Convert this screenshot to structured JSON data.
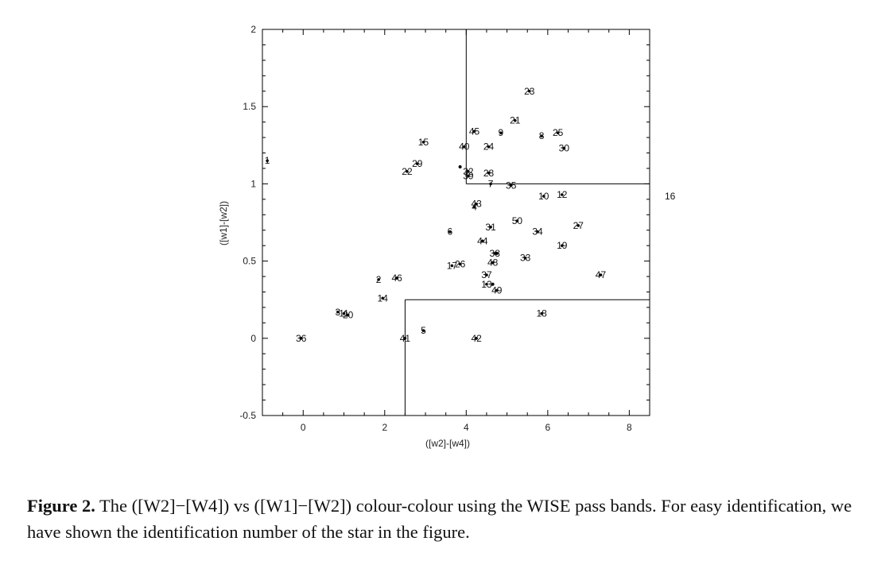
{
  "caption": {
    "label": "Figure 2.",
    "text": "The ([W2]−[W4]) vs ([W1]−[W2]) colour-colour using the WISE pass bands. For easy identification, we have shown the identification number of the star in the figure."
  },
  "chart_data": {
    "type": "scatter",
    "title": "",
    "xlabel": "([w2]-[w4])",
    "ylabel": "([w1]-[w2])",
    "xlim": [
      -1.0,
      8.5
    ],
    "ylim": [
      -0.5,
      2.0
    ],
    "xticks": [
      0,
      2,
      4,
      6,
      8
    ],
    "yticks": [
      -0.5,
      0,
      0.5,
      1,
      1.5,
      2
    ],
    "ytick_labels": [
      "-0.5",
      "0",
      "0.5",
      "1",
      "1.5",
      "2"
    ],
    "grid": false,
    "boundary_lines": [
      {
        "x": [
          4.0,
          4.0
        ],
        "y": [
          1.0,
          2.0
        ]
      },
      {
        "x": [
          4.0,
          8.5
        ],
        "y": [
          1.0,
          1.0
        ]
      },
      {
        "x": [
          2.5,
          2.5
        ],
        "y": [
          -0.5,
          0.25
        ]
      },
      {
        "x": [
          2.5,
          8.5
        ],
        "y": [
          0.25,
          0.25
        ]
      }
    ],
    "points": [
      {
        "label": "1",
        "x": -0.88,
        "y": 1.15
      },
      {
        "label": "2",
        "x": 1.85,
        "y": 0.38
      },
      {
        "label": "3",
        "x": 0.85,
        "y": 0.17
      },
      {
        "label": "4",
        "x": 4.2,
        "y": 0.85
      },
      {
        "label": "5",
        "x": 2.95,
        "y": 0.05
      },
      {
        "label": "6",
        "x": 3.6,
        "y": 0.69
      },
      {
        "label": "7",
        "x": 4.6,
        "y": 1.0
      },
      {
        "label": "8",
        "x": 5.85,
        "y": 1.31
      },
      {
        "label": "9",
        "x": 4.85,
        "y": 1.33
      },
      {
        "label": "10",
        "x": 5.9,
        "y": 0.92
      },
      {
        "label": "11",
        "x": 1.0,
        "y": 0.16
      },
      {
        "label": "12",
        "x": 6.35,
        "y": 0.93
      },
      {
        "label": "13",
        "x": 4.5,
        "y": 0.35
      },
      {
        "label": "14",
        "x": 1.95,
        "y": 0.26
      },
      {
        "label": "15",
        "x": 2.95,
        "y": 1.27
      },
      {
        "label": "16",
        "x": 9.0,
        "y": 0.92
      },
      {
        "label": "17",
        "x": 3.65,
        "y": 0.47
      },
      {
        "label": "18",
        "x": 5.85,
        "y": 0.16
      },
      {
        "label": "19",
        "x": 6.35,
        "y": 0.6
      },
      {
        "label": "20",
        "x": 1.1,
        "y": 0.15
      },
      {
        "label": "21",
        "x": 5.2,
        "y": 1.41
      },
      {
        "label": "22",
        "x": 2.55,
        "y": 1.08
      },
      {
        "label": "23",
        "x": 5.55,
        "y": 1.6
      },
      {
        "label": "24",
        "x": 4.55,
        "y": 1.24
      },
      {
        "label": "25",
        "x": 6.25,
        "y": 1.33
      },
      {
        "label": "26",
        "x": 3.85,
        "y": 0.48
      },
      {
        "label": "27",
        "x": 6.75,
        "y": 0.73
      },
      {
        "label": "28",
        "x": 4.55,
        "y": 1.07
      },
      {
        "label": "29",
        "x": 2.8,
        "y": 1.13
      },
      {
        "label": "30",
        "x": 6.4,
        "y": 1.23
      },
      {
        "label": "31",
        "x": 4.6,
        "y": 0.72
      },
      {
        "label": "32",
        "x": 4.05,
        "y": 1.08
      },
      {
        "label": "33",
        "x": 5.45,
        "y": 0.52
      },
      {
        "label": "34",
        "x": 5.75,
        "y": 0.69
      },
      {
        "label": "35",
        "x": 5.1,
        "y": 0.99
      },
      {
        "label": "36",
        "x": -0.05,
        "y": 0.0
      },
      {
        "label": "37",
        "x": 4.5,
        "y": 0.41
      },
      {
        "label": "38",
        "x": 4.7,
        "y": 0.55
      },
      {
        "label": "39",
        "x": 4.05,
        "y": 1.05
      },
      {
        "label": "40",
        "x": 3.95,
        "y": 1.24
      },
      {
        "label": "41",
        "x": 2.5,
        "y": 0.0
      },
      {
        "label": "42",
        "x": 4.25,
        "y": 0.0
      },
      {
        "label": "43",
        "x": 4.25,
        "y": 0.87
      },
      {
        "label": "44",
        "x": 4.4,
        "y": 0.63
      },
      {
        "label": "45",
        "x": 4.2,
        "y": 1.34
      },
      {
        "label": "46",
        "x": 2.3,
        "y": 0.39
      },
      {
        "label": "47",
        "x": 7.3,
        "y": 0.41
      },
      {
        "label": "48",
        "x": 4.65,
        "y": 0.49
      },
      {
        "label": "49",
        "x": 4.75,
        "y": 0.31
      },
      {
        "label": "50",
        "x": 5.25,
        "y": 0.76
      }
    ],
    "marker_only": [
      {
        "x": 3.85,
        "y": 1.11
      },
      {
        "x": 4.75,
        "y": 0.55
      },
      {
        "x": 4.65,
        "y": 0.35
      }
    ]
  }
}
